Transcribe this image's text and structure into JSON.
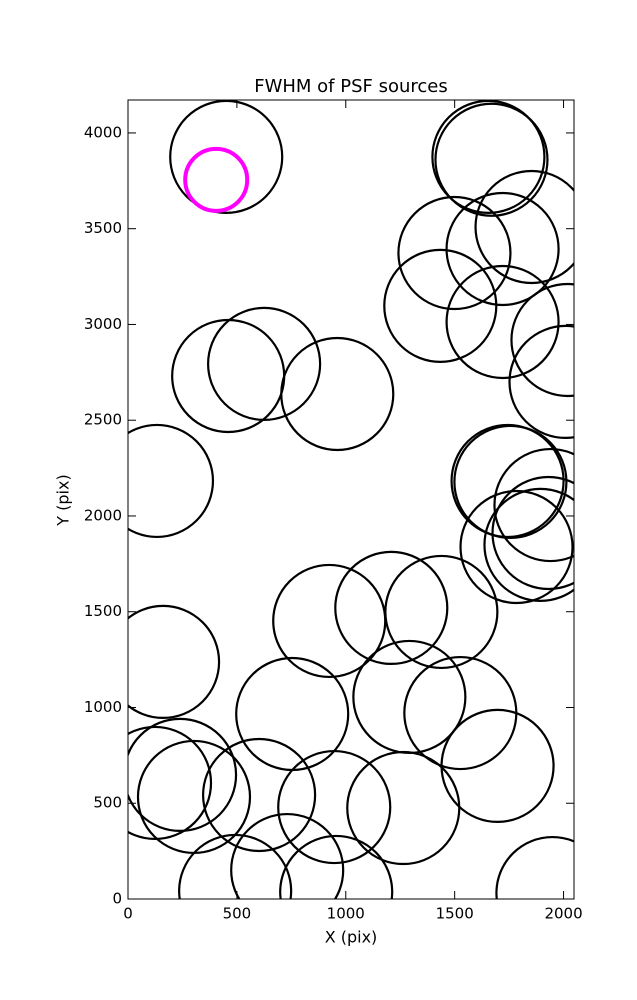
{
  "chart_data": {
    "type": "scatter",
    "title": "FWHM of PSF sources",
    "x_label": "X (pix)",
    "y_label": "Y (pix)",
    "xlim": [
      0,
      2048
    ],
    "ylim": [
      0,
      4172
    ],
    "xticks": [
      0,
      500,
      1000,
      1500,
      2000
    ],
    "yticks": [
      0,
      500,
      1000,
      1500,
      2000,
      2500,
      3000,
      3500,
      4000
    ],
    "series": [
      {
        "color": "#000000",
        "x": [
          451,
          1655,
          1669,
          1720,
          1853,
          1499,
          1434,
          1720,
          2018,
          2009,
          625,
          460,
          961,
          133,
          1743,
          1756,
          1940,
          1931,
          1784,
          1894,
          924,
          1209,
          1439,
          161,
          754,
          1292,
          1526,
          1697,
          239,
          124,
          303,
          602,
          947,
          1264,
          492,
          731,
          956,
          1949
        ],
        "values": [
          3875,
          3875,
          3860,
          3394,
          3509,
          3373,
          3097,
          3013,
          2919,
          2700,
          2794,
          2731,
          2637,
          2183,
          2183,
          2178,
          2057,
          1911,
          1838,
          1849,
          1452,
          1520,
          1499,
          1238,
          966,
          1055,
          971,
          695,
          648,
          606,
          533,
          543,
          480,
          475,
          42,
          151,
          37,
          31
        ]
      },
      {
        "color": "#ff00ff",
        "x": [
          405
        ],
        "values": [
          3755
        ]
      }
    ]
  }
}
